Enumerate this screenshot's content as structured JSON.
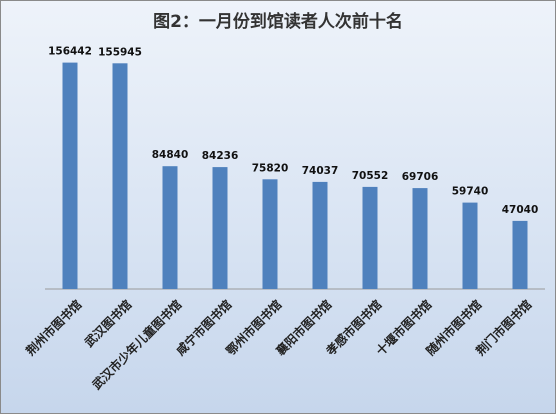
{
  "chart_data": {
    "type": "bar",
    "title": "图2：一月份到馆读者人次前十名",
    "xlabel": "",
    "ylabel": "",
    "ylim": [
      0,
      170000
    ],
    "grid": false,
    "legend": "none",
    "categories": [
      "荆州市图书馆",
      "武汉图书馆",
      "武汉市少年儿童图书馆",
      "咸宁市图书馆",
      "鄂州市图书馆",
      "襄阳市图书馆",
      "孝感市图书馆",
      "十堰市图书馆",
      "随州市图书馆",
      "荆门市图书馆"
    ],
    "values": [
      156442,
      155945,
      84840,
      84236,
      75820,
      74037,
      70552,
      69706,
      59740,
      47040
    ],
    "bar_color": "#4f81bd"
  }
}
